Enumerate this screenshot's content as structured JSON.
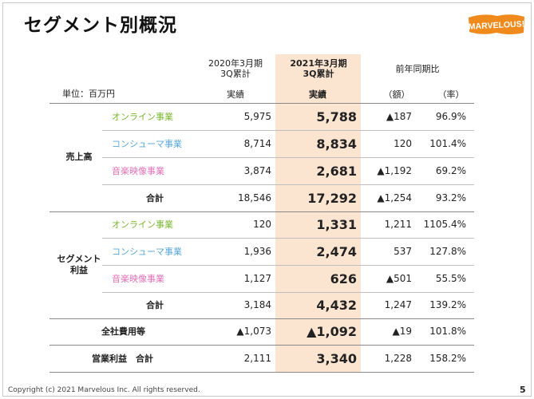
{
  "title": "セグメント別概況",
  "logo_text": "MARVELOUS!",
  "unit_label": "単位：百万円",
  "headers": {
    "col2020_line1": "2020年3月期",
    "col2020_line2": "3Q累計",
    "col2021_line1": "2021年3月期",
    "col2021_line2": "3Q累計",
    "yoy": "前年同期比",
    "sub_2020": "実績",
    "sub_2021": "実績",
    "sub_amount": "（額）",
    "sub_rate": "（率）"
  },
  "sales": {
    "group_label": "売上高",
    "rows": [
      {
        "name": "オンライン事業",
        "v2020": "5,975",
        "v2021": "5,788",
        "diff": "▲187",
        "rate": "96.9%"
      },
      {
        "name": "コンシューマ事業",
        "v2020": "8,714",
        "v2021": "8,834",
        "diff": "120",
        "rate": "101.4%"
      },
      {
        "name": "音楽映像事業",
        "v2020": "3,874",
        "v2021": "2,681",
        "diff": "▲1,192",
        "rate": "69.2%"
      },
      {
        "name": "合計",
        "v2020": "18,546",
        "v2021": "17,292",
        "diff": "▲1,254",
        "rate": "93.2%"
      }
    ]
  },
  "profit": {
    "group_label_line1": "セグメント",
    "group_label_line2": "利益",
    "rows": [
      {
        "name": "オンライン事業",
        "v2020": "120",
        "v2021": "1,331",
        "diff": "1,211",
        "rate": "1105.4%"
      },
      {
        "name": "コンシューマ事業",
        "v2020": "1,936",
        "v2021": "2,474",
        "diff": "537",
        "rate": "127.8%"
      },
      {
        "name": "音楽映像事業",
        "v2020": "1,127",
        "v2021": "626",
        "diff": "▲501",
        "rate": "55.5%"
      },
      {
        "name": "合計",
        "v2020": "3,184",
        "v2021": "4,432",
        "diff": "1,247",
        "rate": "139.2%"
      }
    ]
  },
  "corporate": {
    "name": "全社費用等",
    "v2020": "▲1,073",
    "v2021": "▲1,092",
    "diff": "▲19",
    "rate": "101.8%"
  },
  "operating": {
    "name": "営業利益　合計",
    "v2020": "2,111",
    "v2021": "3,340",
    "diff": "1,228",
    "rate": "158.2%"
  },
  "segment_colors": {
    "online": "#7ab52e",
    "consumer": "#5aa7d8",
    "music": "#e36fb7",
    "highlight": "#fbe4d0",
    "logo": "#f08a1c"
  },
  "footer": {
    "copyright": "Copyright (c) 2021 Marvelous Inc. All rights reserved.",
    "page_number": "5"
  }
}
